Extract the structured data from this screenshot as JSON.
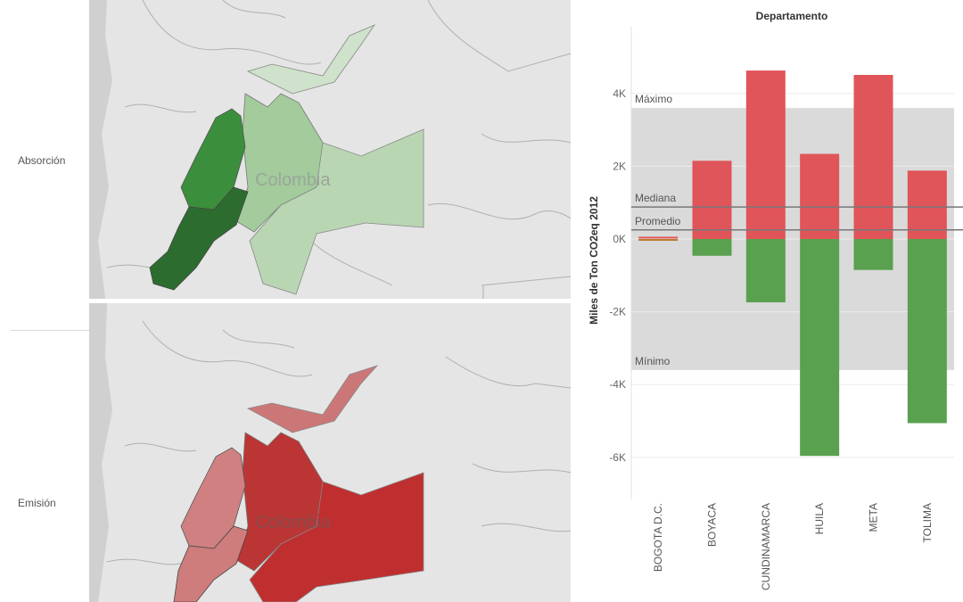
{
  "rows": [
    {
      "label": "Absorción",
      "map_text": "Colombia"
    },
    {
      "label": "Emisión",
      "map_text": "Colombia"
    }
  ],
  "colors": {
    "emission": "#e05559",
    "absorption": "#59a14f",
    "reference_band": "#dadada",
    "reference_line": "#777777",
    "map_background": "#e5e5e5",
    "map_border": "#b0b0b0"
  },
  "chart_data": {
    "type": "bar",
    "title": "Departamento",
    "ylabel": "Miles de Ton CO2eq 2012",
    "xlabel": "",
    "categories": [
      "BOGOTA D.C.",
      "BOYACA",
      "CUNDINAMARCA",
      "HUILA",
      "META",
      "TOLIMA"
    ],
    "series": [
      {
        "name": "Emisión",
        "values": [
          50,
          2150,
          4630,
          2340,
          4510,
          1880
        ]
      },
      {
        "name": "Absorción",
        "values": [
          -30,
          -460,
          -1740,
          -5960,
          -850,
          -5060
        ]
      }
    ],
    "ylim": [
      -7000,
      5300
    ],
    "yticks": [
      4000,
      2000,
      0,
      -2000,
      -4000,
      -6000
    ],
    "ytick_labels": [
      "4K",
      "2K",
      "0K",
      "-2K",
      "-4K",
      "-6K"
    ],
    "reference_band": {
      "from": -3600,
      "to": 3600
    },
    "reference_lines": [
      {
        "label": "Máximo",
        "value": 3600,
        "line": false
      },
      {
        "label": "Mediana",
        "value": 880,
        "line": true
      },
      {
        "label": "Promedio",
        "value": 250,
        "line": true
      },
      {
        "label": "Mínimo",
        "value": -3600,
        "line": false
      }
    ],
    "grid": true
  }
}
